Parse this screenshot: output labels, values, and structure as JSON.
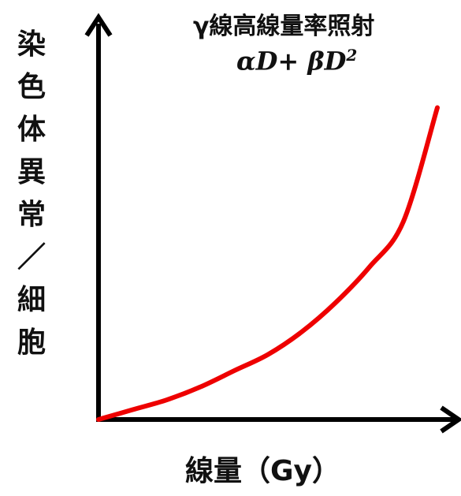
{
  "chart_data": {
    "type": "line",
    "title_line1": "γ線高線量率照射",
    "title_line2": "αD+ βD2",
    "title_line2_super": "2",
    "ylabel_chars": [
      "染",
      "色",
      "体",
      "異",
      "常",
      "／",
      "細",
      "胞"
    ],
    "xlabel": "線量（Gy）",
    "x_tick_labels": [],
    "y_tick_labels": [],
    "grid": false,
    "legend": "none",
    "x_range": [
      0,
      1
    ],
    "y_range": [
      0,
      1
    ],
    "series": [
      {
        "color": "#ee0000",
        "shape": "linear-quadratic",
        "points": [
          {
            "x": 0.0,
            "y": 0.0
          },
          {
            "x": 0.1,
            "y": 0.03
          },
          {
            "x": 0.2,
            "y": 0.06
          },
          {
            "x": 0.3,
            "y": 0.1
          },
          {
            "x": 0.4,
            "y": 0.15
          },
          {
            "x": 0.5,
            "y": 0.2
          },
          {
            "x": 0.6,
            "y": 0.27
          },
          {
            "x": 0.7,
            "y": 0.36
          },
          {
            "x": 0.8,
            "y": 0.47
          },
          {
            "x": 0.9,
            "y": 0.61
          },
          {
            "x": 1.0,
            "y": 0.96
          }
        ]
      }
    ],
    "axis_color": "#000000"
  }
}
